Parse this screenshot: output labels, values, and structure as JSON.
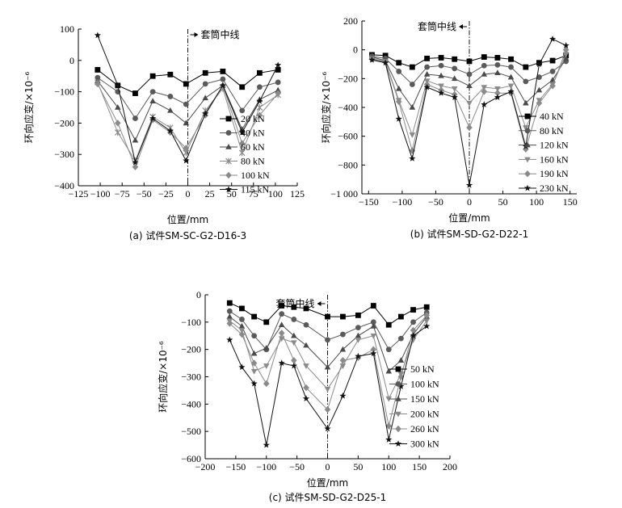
{
  "chart_data": [
    {
      "type": "line",
      "caption": "(a) 试件SM-SC-G2-D16-3",
      "xlabel": "位置/mm",
      "ylabel": "环向应变/×10⁻⁶",
      "xlim": [
        -125,
        125
      ],
      "ylim": [
        -400,
        100
      ],
      "xticks": [
        -125,
        -100,
        -75,
        -50,
        -25,
        0,
        25,
        50,
        75,
        100,
        125
      ],
      "yticks": [
        -400,
        -300,
        -200,
        -100,
        0,
        100
      ],
      "annotation": "套筒中线",
      "annotation_arrow": "right",
      "legend_position": "right",
      "x": [
        -103,
        -80,
        -60,
        -40,
        -20,
        -2,
        20,
        40,
        62,
        82,
        103
      ],
      "series": [
        {
          "name": "20 kN",
          "marker": "square",
          "values": [
            -30,
            -80,
            -105,
            -50,
            -45,
            -75,
            -40,
            -35,
            -85,
            -40,
            -30
          ]
        },
        {
          "name": "40 kN",
          "marker": "circle",
          "values": [
            -55,
            -100,
            -185,
            -100,
            -115,
            -140,
            -75,
            -60,
            -160,
            -85,
            -70
          ]
        },
        {
          "name": "60 kN",
          "marker": "triangle-up",
          "values": [
            -65,
            -150,
            -255,
            -130,
            -160,
            -200,
            -120,
            -80,
            -220,
            -125,
            -95
          ]
        },
        {
          "name": "80 kN",
          "marker": "cross",
          "values": [
            -70,
            -230,
            -320,
            -180,
            -215,
            -295,
            -160,
            -90,
            -295,
            -150,
            -110
          ]
        },
        {
          "name": "100 kN",
          "marker": "diamond",
          "values": [
            -75,
            -200,
            -340,
            -190,
            -230,
            -280,
            -175,
            -80,
            -265,
            -175,
            -105
          ]
        },
        {
          "name": "115 kN",
          "marker": "star",
          "values": [
            80,
            -80,
            -325,
            -185,
            -225,
            -320,
            -170,
            -80,
            -230,
            -130,
            -15
          ]
        }
      ]
    },
    {
      "type": "line",
      "caption": "(b) 试件SM-SD-G2-D22-1",
      "xlabel": "位置/mm",
      "ylabel": "环向应变/×10⁻⁶",
      "xlim": [
        -160,
        160
      ],
      "ylim": [
        -1000,
        200
      ],
      "xticks": [
        -150,
        -100,
        -50,
        0,
        50,
        100,
        150
      ],
      "yticks": [
        -1000,
        -800,
        -600,
        -400,
        -200,
        0,
        200
      ],
      "annotation": "套筒中线",
      "annotation_arrow": "left",
      "legend_position": "bottom-right",
      "x": [
        -145,
        -125,
        -105,
        -85,
        -63,
        -42,
        -22,
        0,
        22,
        42,
        62,
        84,
        104,
        124,
        144
      ],
      "series": [
        {
          "name": "40 kN",
          "marker": "square",
          "values": [
            -35,
            -40,
            -90,
            -120,
            -60,
            -55,
            -65,
            -80,
            -50,
            -55,
            -65,
            -120,
            -90,
            -75,
            -40
          ]
        },
        {
          "name": "80 kN",
          "marker": "circle",
          "values": [
            -45,
            -60,
            -150,
            -240,
            -120,
            -110,
            -130,
            -170,
            -110,
            -105,
            -120,
            -220,
            -190,
            -150,
            -80
          ]
        },
        {
          "name": "120 kN",
          "marker": "triangle-up",
          "values": [
            -50,
            -75,
            -270,
            -400,
            -170,
            -180,
            -200,
            -250,
            -170,
            -160,
            -190,
            -370,
            -280,
            -210,
            -60
          ]
        },
        {
          "name": "160 kN",
          "marker": "triangle-down",
          "values": [
            -60,
            -80,
            -350,
            -590,
            -215,
            -250,
            -270,
            -370,
            -260,
            -270,
            -250,
            -540,
            -350,
            -240,
            -30
          ]
        },
        {
          "name": "190 kN",
          "marker": "diamond",
          "values": [
            -65,
            -85,
            -360,
            -700,
            -240,
            -280,
            -310,
            -540,
            -290,
            -300,
            -300,
            -690,
            -370,
            -250,
            0
          ]
        },
        {
          "name": "230 kN",
          "marker": "star",
          "values": [
            -70,
            -90,
            -480,
            -755,
            -260,
            -300,
            -330,
            -940,
            -380,
            -330,
            -290,
            -670,
            -100,
            75,
            30
          ]
        }
      ]
    },
    {
      "type": "line",
      "caption": "(c) 试件SM-SD-G2-D25-1",
      "xlabel": "位置/mm",
      "ylabel": "环向应变/×10⁻⁶",
      "xlim": [
        -200,
        200
      ],
      "ylim": [
        -600,
        0
      ],
      "xticks": [
        -200,
        -150,
        -100,
        -50,
        0,
        50,
        100,
        150,
        200
      ],
      "yticks": [
        -600,
        -500,
        -400,
        -300,
        -200,
        -100,
        0
      ],
      "annotation": "套筒中线",
      "annotation_arrow": "left",
      "legend_position": "right",
      "x": [
        -160,
        -140,
        -120,
        -100,
        -75,
        -55,
        -35,
        0,
        25,
        50,
        75,
        100,
        120,
        140,
        162
      ],
      "series": [
        {
          "name": "50 kN",
          "marker": "square",
          "values": [
            -30,
            -50,
            -80,
            -100,
            -40,
            -45,
            -50,
            -80,
            -80,
            -75,
            -40,
            -110,
            -80,
            -55,
            -45
          ]
        },
        {
          "name": "100 kN",
          "marker": "circle",
          "values": [
            -60,
            -90,
            -150,
            -200,
            -70,
            -90,
            -110,
            -165,
            -145,
            -120,
            -100,
            -200,
            -160,
            -100,
            -65
          ]
        },
        {
          "name": "150 kN",
          "marker": "triangle-up",
          "values": [
            -80,
            -115,
            -215,
            -195,
            -110,
            -150,
            -185,
            -265,
            -200,
            -150,
            -115,
            -280,
            -240,
            -145,
            -80
          ]
        },
        {
          "name": "200 kN",
          "marker": "triangle-down",
          "values": [
            -95,
            -130,
            -280,
            -260,
            -160,
            -175,
            -260,
            -345,
            -260,
            -165,
            -150,
            -380,
            -290,
            -165,
            -95
          ]
        },
        {
          "name": "260 kN",
          "marker": "diamond",
          "values": [
            -105,
            -145,
            -250,
            -325,
            -140,
            -240,
            -340,
            -420,
            -240,
            -230,
            -200,
            -480,
            -300,
            -130,
            -75
          ]
        },
        {
          "name": "300 kN",
          "marker": "star",
          "values": [
            -165,
            -265,
            -325,
            -550,
            -250,
            -260,
            -380,
            -490,
            -370,
            -225,
            -215,
            -530,
            -335,
            -150,
            -115
          ]
        }
      ]
    }
  ]
}
